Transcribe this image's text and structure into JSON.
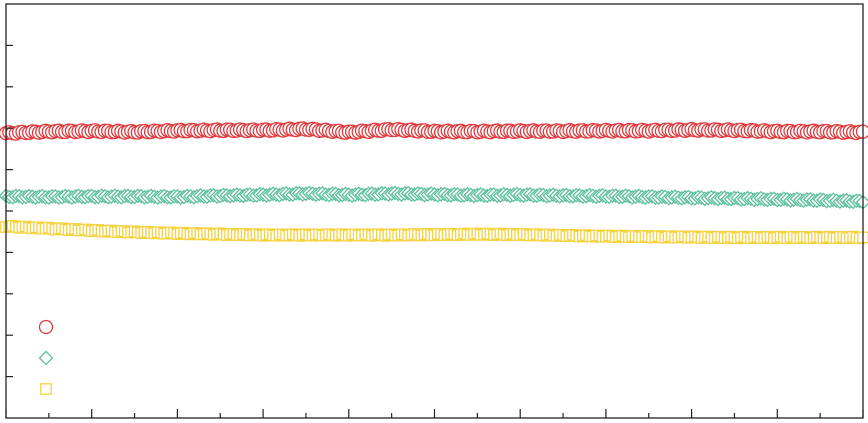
{
  "chart_data": {
    "type": "scatter",
    "title": "",
    "xlabel": "",
    "ylabel": "",
    "xlim": [
      0,
      100
    ],
    "ylim": [
      0,
      10
    ],
    "x_ticks": {
      "major_every": 10,
      "minor_every": 5
    },
    "y_ticks": {
      "major_every": 1
    },
    "legend": {
      "placement": "bottom-left"
    },
    "grid": false,
    "series": [
      {
        "marker": "circle",
        "color": "#e03a3e",
        "x": [
          0,
          5,
          10,
          15,
          20,
          25,
          30,
          35,
          40,
          45,
          50,
          55,
          60,
          65,
          70,
          75,
          80,
          85,
          90,
          95,
          100
        ],
        "y": [
          6.88,
          6.92,
          6.93,
          6.91,
          6.94,
          6.95,
          6.95,
          6.98,
          6.9,
          6.97,
          6.92,
          6.92,
          6.93,
          6.93,
          6.94,
          6.94,
          6.96,
          6.95,
          6.92,
          6.92,
          6.9
        ]
      },
      {
        "marker": "diamond",
        "color": "#5dbf9e",
        "x": [
          0,
          5,
          10,
          15,
          20,
          25,
          30,
          35,
          40,
          45,
          50,
          55,
          60,
          65,
          70,
          75,
          80,
          85,
          90,
          95,
          100
        ],
        "y": [
          5.35,
          5.34,
          5.35,
          5.35,
          5.34,
          5.37,
          5.39,
          5.42,
          5.39,
          5.42,
          5.4,
          5.38,
          5.39,
          5.37,
          5.36,
          5.34,
          5.32,
          5.3,
          5.28,
          5.26,
          5.23
        ]
      },
      {
        "marker": "square",
        "color": "#f5d23e",
        "x": [
          0,
          5,
          10,
          15,
          20,
          25,
          30,
          35,
          40,
          45,
          50,
          55,
          60,
          65,
          70,
          75,
          80,
          85,
          90,
          95,
          100
        ],
        "y": [
          4.63,
          4.58,
          4.53,
          4.49,
          4.46,
          4.44,
          4.42,
          4.42,
          4.42,
          4.42,
          4.43,
          4.44,
          4.43,
          4.41,
          4.39,
          4.38,
          4.37,
          4.36,
          4.36,
          4.36,
          4.36
        ]
      }
    ]
  }
}
